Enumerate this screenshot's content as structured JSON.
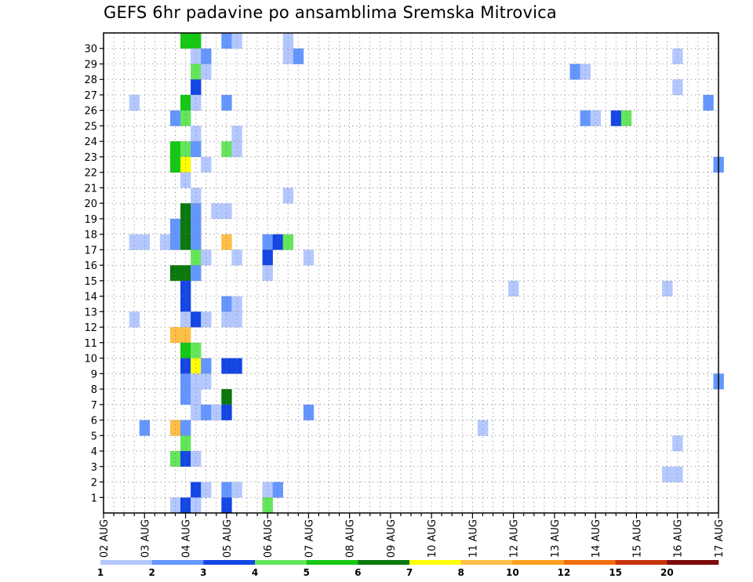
{
  "chart_data": {
    "type": "heatmap",
    "title": "GEFS 6hr padavine po ansamblima Sremska Mitrovica",
    "xlabel": "",
    "ylabel": "",
    "x_tick_labels": [
      "02 AUG",
      "03 AUG",
      "04 AUG",
      "05 AUG",
      "06 AUG",
      "07 AUG",
      "08 AUG",
      "09 AUG",
      "10 AUG",
      "11 AUG",
      "12 AUG",
      "13 AUG",
      "14 AUG",
      "15 AUG",
      "16 AUG",
      "17 AUG"
    ],
    "y_tick_labels": [
      "1",
      "2",
      "3",
      "4",
      "5",
      "6",
      "7",
      "8",
      "9",
      "10",
      "11",
      "12",
      "13",
      "14",
      "15",
      "16",
      "17",
      "18",
      "19",
      "20",
      "21",
      "22",
      "23",
      "24",
      "25",
      "26",
      "27",
      "28",
      "29",
      "30"
    ],
    "xlim": [
      0,
      60
    ],
    "ylim": [
      0,
      30
    ],
    "grid": true,
    "colorbar": {
      "labels": [
        "1",
        "2",
        "3",
        "4",
        "5",
        "6",
        "7",
        "8",
        "10",
        "12",
        "15",
        "20"
      ],
      "colors": [
        "#b4c8ff",
        "#6496ff",
        "#1446e6",
        "#64e65a",
        "#14c814",
        "#0a780a",
        "#ffff00",
        "#ffbe46",
        "#ffa01e",
        "#f06e0a",
        "#c8320a",
        "#7d0a0a"
      ]
    },
    "cells": [
      [
        8,
        30,
        4
      ],
      [
        9,
        30,
        4
      ],
      [
        12,
        30,
        1
      ],
      [
        13,
        30,
        0
      ],
      [
        18,
        30,
        0
      ],
      [
        9,
        29,
        0
      ],
      [
        10,
        29,
        1
      ],
      [
        18,
        29,
        0
      ],
      [
        19,
        29,
        1
      ],
      [
        56,
        29,
        0
      ],
      [
        9,
        28,
        3
      ],
      [
        10,
        28,
        0
      ],
      [
        46,
        28,
        1
      ],
      [
        47,
        28,
        0
      ],
      [
        9,
        27,
        2
      ],
      [
        56,
        27,
        0
      ],
      [
        3,
        26,
        0
      ],
      [
        8,
        26,
        4
      ],
      [
        9,
        26,
        0
      ],
      [
        12,
        26,
        1
      ],
      [
        59,
        26,
        1
      ],
      [
        7,
        25,
        1
      ],
      [
        8,
        25,
        3
      ],
      [
        47,
        25,
        1
      ],
      [
        48,
        25,
        0
      ],
      [
        50,
        25,
        2
      ],
      [
        51,
        25,
        3
      ],
      [
        9,
        24,
        0
      ],
      [
        13,
        24,
        0
      ],
      [
        7,
        23,
        4
      ],
      [
        8,
        23,
        3
      ],
      [
        9,
        23,
        1
      ],
      [
        12,
        23,
        3
      ],
      [
        13,
        23,
        0
      ],
      [
        7,
        22,
        4
      ],
      [
        8,
        22,
        6
      ],
      [
        10,
        22,
        0
      ],
      [
        60,
        22,
        1
      ],
      [
        8,
        21,
        0
      ],
      [
        9,
        20,
        0
      ],
      [
        18,
        20,
        0
      ],
      [
        8,
        19,
        5
      ],
      [
        9,
        19,
        1
      ],
      [
        11,
        19,
        0
      ],
      [
        12,
        19,
        0
      ],
      [
        7,
        18,
        1
      ],
      [
        8,
        18,
        5
      ],
      [
        9,
        18,
        1
      ],
      [
        3,
        17,
        0
      ],
      [
        4,
        17,
        0
      ],
      [
        6,
        17,
        0
      ],
      [
        7,
        17,
        1
      ],
      [
        8,
        17,
        5
      ],
      [
        9,
        17,
        1
      ],
      [
        12,
        17,
        7
      ],
      [
        16,
        17,
        1
      ],
      [
        17,
        17,
        2
      ],
      [
        18,
        17,
        3
      ],
      [
        16,
        16,
        2
      ],
      [
        9,
        16,
        3
      ],
      [
        10,
        16,
        0
      ],
      [
        13,
        16,
        0
      ],
      [
        20,
        16,
        0
      ],
      [
        16,
        15,
        0
      ],
      [
        7,
        15,
        5
      ],
      [
        8,
        15,
        5
      ],
      [
        9,
        15,
        1
      ],
      [
        8,
        14,
        2
      ],
      [
        40,
        14,
        0
      ],
      [
        55,
        14,
        0
      ],
      [
        8,
        13,
        2
      ],
      [
        12,
        13,
        1
      ],
      [
        13,
        13,
        0
      ],
      [
        3,
        12,
        0
      ],
      [
        8,
        12,
        0
      ],
      [
        9,
        12,
        2
      ],
      [
        10,
        12,
        0
      ],
      [
        12,
        12,
        0
      ],
      [
        13,
        12,
        0
      ],
      [
        7,
        11,
        7
      ],
      [
        8,
        11,
        7
      ],
      [
        8,
        10,
        4
      ],
      [
        9,
        10,
        3
      ],
      [
        8,
        9,
        2
      ],
      [
        9,
        9,
        6
      ],
      [
        10,
        9,
        1
      ],
      [
        12,
        9,
        2
      ],
      [
        13,
        9,
        2
      ],
      [
        8,
        8,
        1
      ],
      [
        9,
        8,
        0
      ],
      [
        10,
        8,
        0
      ],
      [
        60,
        8,
        1
      ],
      [
        8,
        7,
        1
      ],
      [
        9,
        7,
        0
      ],
      [
        12,
        7,
        5
      ],
      [
        9,
        6,
        0
      ],
      [
        10,
        6,
        1
      ],
      [
        11,
        6,
        0
      ],
      [
        12,
        6,
        2
      ],
      [
        20,
        6,
        1
      ],
      [
        4,
        5,
        1
      ],
      [
        7,
        5,
        7
      ],
      [
        8,
        5,
        1
      ],
      [
        37,
        5,
        0
      ],
      [
        8,
        4,
        3
      ],
      [
        56,
        4,
        0
      ],
      [
        7,
        3,
        3
      ],
      [
        8,
        3,
        2
      ],
      [
        9,
        3,
        0
      ],
      [
        55,
        2,
        0
      ],
      [
        56,
        2,
        0
      ],
      [
        9,
        1,
        2
      ],
      [
        10,
        1,
        0
      ],
      [
        12,
        1,
        1
      ],
      [
        13,
        1,
        0
      ],
      [
        16,
        1,
        0
      ],
      [
        17,
        1,
        1
      ],
      [
        7,
        0,
        0
      ],
      [
        8,
        0,
        2
      ],
      [
        9,
        0,
        0
      ],
      [
        12,
        0,
        2
      ],
      [
        16,
        0,
        3
      ]
    ]
  }
}
